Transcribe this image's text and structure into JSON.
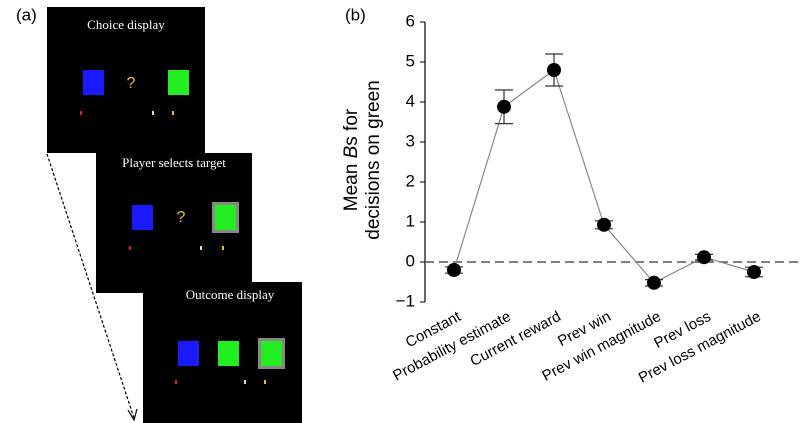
{
  "panel_a": {
    "label": "(a)",
    "screens": [
      {
        "title": "Choice display",
        "middle": "?"
      },
      {
        "title": "Player selects target",
        "middle": "?"
      },
      {
        "title": "Outcome display"
      }
    ]
  },
  "chart_data": {
    "type": "line",
    "panel_label": "(b)",
    "y_label": {
      "line1": [
        "Mean ",
        "B",
        "s for"
      ],
      "line2": "decisions on green"
    },
    "categories": [
      "Constant",
      "Probability estimate",
      "Current reward",
      "Prev win",
      "Prev win magnitude",
      "Prev loss",
      "Prev loss magnitude"
    ],
    "values": [
      -0.2,
      3.88,
      4.8,
      0.93,
      -0.52,
      0.12,
      -0.25
    ],
    "errors": [
      0.08,
      0.42,
      0.4,
      0.1,
      0.08,
      0.07,
      0.12
    ],
    "color": "#000000",
    "line_color": "#888888",
    "ylim": [
      -1,
      6
    ],
    "yticks": [
      {
        "value": -1,
        "label": "−1"
      },
      0,
      1,
      2,
      3,
      4,
      5,
      6
    ],
    "hline": 0
  }
}
